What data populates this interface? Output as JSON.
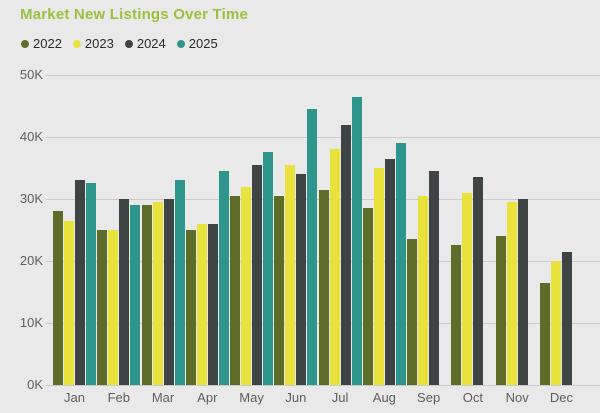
{
  "title": "Market New Listings Over Time",
  "colors": {
    "background": "#e9e9e9",
    "title_text": "#9ac13d",
    "gridline": "#cbcbcb",
    "axis_text": "#605e5c",
    "legend_text": "#2b2b2b"
  },
  "chart_data": {
    "type": "bar",
    "title": "Market New Listings Over Time",
    "xlabel": "",
    "ylabel": "",
    "ylim": [
      0,
      50000
    ],
    "grid": true,
    "legend_position": "top-left",
    "yticks": [
      {
        "label": "0K",
        "value": 0
      },
      {
        "label": "10K",
        "value": 10000
      },
      {
        "label": "20K",
        "value": 20000
      },
      {
        "label": "30K",
        "value": 30000
      },
      {
        "label": "40K",
        "value": 40000
      },
      {
        "label": "50K",
        "value": 50000
      }
    ],
    "categories": [
      "Jan",
      "Feb",
      "Mar",
      "Apr",
      "May",
      "Jun",
      "Jul",
      "Aug",
      "Sep",
      "Oct",
      "Nov",
      "Dec"
    ],
    "series": [
      {
        "name": "2022",
        "color": "#5e6c2a",
        "values": [
          28000,
          25000,
          29000,
          25000,
          30500,
          30500,
          31500,
          28500,
          23500,
          22500,
          24000,
          16500
        ]
      },
      {
        "name": "2023",
        "color": "#eae23c",
        "values": [
          26500,
          25000,
          29500,
          26000,
          32000,
          35500,
          38000,
          35000,
          30500,
          31000,
          29500,
          20000
        ]
      },
      {
        "name": "2024",
        "color": "#3e4344",
        "values": [
          33000,
          30000,
          30000,
          26000,
          35500,
          34000,
          42000,
          36500,
          34500,
          33500,
          30000,
          21500
        ]
      },
      {
        "name": "2025",
        "color": "#2e958c",
        "values": [
          32500,
          29000,
          33000,
          34500,
          37500,
          44500,
          46500,
          39000,
          null,
          null,
          null,
          null
        ]
      }
    ]
  }
}
